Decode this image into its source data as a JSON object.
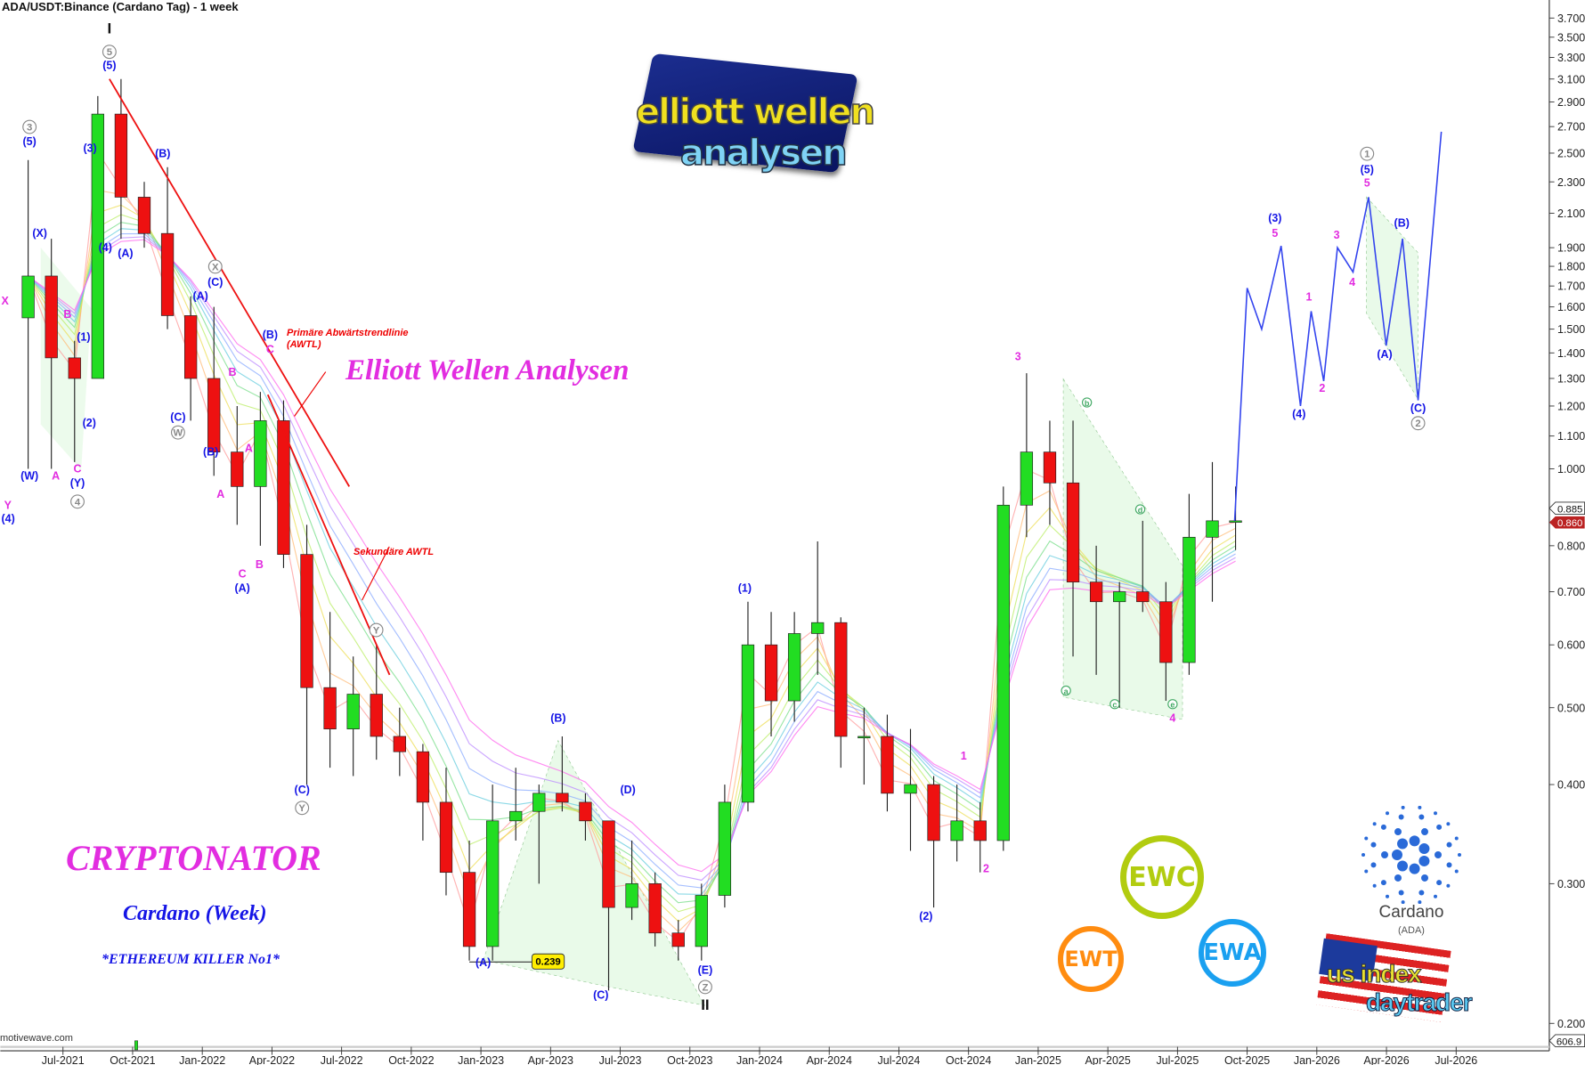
{
  "header": {
    "title": "ADA/USDT:Binance (Cardano Tag) - 1 week"
  },
  "watermark": "motivewave.com",
  "texts": {
    "main_title": "Elliott Wellen Analysen",
    "cryptonator": "CRYPTONATOR",
    "subtitle": "Cardano (Week)",
    "tagline": "*ETHEREUM KILLER No1*",
    "primary_trendline": "Primäre Abwärtstrendlinie (AWTL)",
    "secondary_trendline": "Sekundäre AWTL"
  },
  "logos": {
    "elliott_wellen": [
      "elliott wellen",
      "analysen"
    ],
    "badges": [
      "EWC",
      "EWT",
      "EWA"
    ],
    "cardano": [
      "Cardano",
      "(ADA)"
    ],
    "usindex": [
      "us index",
      "daytrader"
    ]
  },
  "chart_data": {
    "type": "candlestick",
    "title": "ADA/USDT:Binance (Cardano Tag) - 1 week",
    "y_scale": "log",
    "ylim": [
      0.19,
      3.9
    ],
    "xlim": [
      "2021-04-01",
      "2026-08-01"
    ],
    "grid": false,
    "colors": {
      "up": "#22dd22",
      "down": "#ee1111",
      "projection": "#3344ee",
      "trendline": "#ee1111",
      "wave_blue": "#1515e6",
      "wave_magenta": "#e22de0",
      "wave_gray": "#888888",
      "wave_green": "#44aa66"
    },
    "y_ticks": [
      "3.700",
      "3.500",
      "3.300",
      "3.100",
      "2.900",
      "2.700",
      "2.500",
      "2.300",
      "2.100",
      "1.900",
      "1.800",
      "1.700",
      "1.600",
      "1.500",
      "1.400",
      "1.300",
      "1.200",
      "1.100",
      "1.000",
      "0.800",
      "0.700",
      "0.600",
      "0.500",
      "0.400",
      "0.300",
      "0.200"
    ],
    "x_ticks": [
      "Jul-2021",
      "Oct-2021",
      "Jan-2022",
      "Apr-2022",
      "Jul-2022",
      "Oct-2022",
      "Jan-2023",
      "Apr-2023",
      "Jul-2023",
      "Oct-2023",
      "Jan-2024",
      "Apr-2024",
      "Jul-2024",
      "Oct-2024",
      "Jan-2025",
      "Apr-2025",
      "Jul-2025",
      "Oct-2025",
      "Jan-2026",
      "Apr-2026",
      "Jul-2026"
    ],
    "price_tags": {
      "last": "0.885",
      "current": "0.860",
      "volume": "606.9"
    },
    "low_marker": {
      "date": "2022-12",
      "price": 0.239,
      "label": "0.239"
    },
    "candles": [
      [
        "2021-05",
        1.55,
        2.45,
        1.0,
        1.75
      ],
      [
        "2021-06",
        1.75,
        1.95,
        1.0,
        1.38
      ],
      [
        "2021-07",
        1.38,
        1.45,
        1.02,
        1.3
      ],
      [
        "2021-08",
        1.3,
        2.95,
        1.3,
        2.8
      ],
      [
        "2021-09",
        2.8,
        3.1,
        1.95,
        2.2
      ],
      [
        "2021-10",
        2.2,
        2.3,
        1.9,
        1.98
      ],
      [
        "2021-11",
        1.98,
        2.4,
        1.5,
        1.56
      ],
      [
        "2021-12",
        1.56,
        1.65,
        1.15,
        1.3
      ],
      [
        "2022-01",
        1.3,
        1.6,
        0.98,
        1.05
      ],
      [
        "2022-02",
        1.05,
        1.2,
        0.85,
        0.95
      ],
      [
        "2022-03",
        0.95,
        1.25,
        0.8,
        1.15
      ],
      [
        "2022-04",
        1.15,
        1.22,
        0.75,
        0.78
      ],
      [
        "2022-05",
        0.78,
        0.85,
        0.4,
        0.53
      ],
      [
        "2022-06",
        0.53,
        0.66,
        0.42,
        0.47
      ],
      [
        "2022-07",
        0.47,
        0.58,
        0.41,
        0.52
      ],
      [
        "2022-08",
        0.52,
        0.6,
        0.43,
        0.46
      ],
      [
        "2022-09",
        0.46,
        0.5,
        0.41,
        0.44
      ],
      [
        "2022-10",
        0.44,
        0.45,
        0.34,
        0.38
      ],
      [
        "2022-11",
        0.38,
        0.42,
        0.29,
        0.31
      ],
      [
        "2022-12",
        0.31,
        0.34,
        0.24,
        0.25
      ],
      [
        "2023-01",
        0.25,
        0.4,
        0.24,
        0.36
      ],
      [
        "2023-02",
        0.36,
        0.42,
        0.34,
        0.37
      ],
      [
        "2023-03",
        0.37,
        0.4,
        0.3,
        0.39
      ],
      [
        "2023-04",
        0.39,
        0.46,
        0.37,
        0.38
      ],
      [
        "2023-05",
        0.38,
        0.39,
        0.34,
        0.36
      ],
      [
        "2023-06",
        0.36,
        0.36,
        0.22,
        0.28
      ],
      [
        "2023-07",
        0.28,
        0.34,
        0.27,
        0.3
      ],
      [
        "2023-08",
        0.3,
        0.31,
        0.25,
        0.26
      ],
      [
        "2023-09",
        0.26,
        0.27,
        0.24,
        0.25
      ],
      [
        "2023-10",
        0.25,
        0.3,
        0.24,
        0.29
      ],
      [
        "2023-11",
        0.29,
        0.4,
        0.28,
        0.38
      ],
      [
        "2023-12",
        0.38,
        0.68,
        0.37,
        0.6
      ],
      [
        "2024-01",
        0.6,
        0.66,
        0.46,
        0.51
      ],
      [
        "2024-02",
        0.51,
        0.66,
        0.48,
        0.62
      ],
      [
        "2024-03",
        0.62,
        0.81,
        0.55,
        0.64
      ],
      [
        "2024-04",
        0.64,
        0.65,
        0.42,
        0.46
      ],
      [
        "2024-05",
        0.46,
        0.5,
        0.4,
        0.46
      ],
      [
        "2024-06",
        0.46,
        0.49,
        0.37,
        0.39
      ],
      [
        "2024-07",
        0.39,
        0.47,
        0.33,
        0.4
      ],
      [
        "2024-08",
        0.4,
        0.41,
        0.28,
        0.34
      ],
      [
        "2024-09",
        0.34,
        0.4,
        0.32,
        0.36
      ],
      [
        "2024-10",
        0.36,
        0.38,
        0.31,
        0.34
      ],
      [
        "2024-11",
        0.34,
        0.95,
        0.33,
        0.9
      ],
      [
        "2024-12",
        0.9,
        1.32,
        0.82,
        1.05
      ],
      [
        "2025-01",
        1.05,
        1.15,
        0.85,
        0.96
      ],
      [
        "2025-02",
        0.96,
        1.15,
        0.58,
        0.72
      ],
      [
        "2025-03",
        0.72,
        0.8,
        0.55,
        0.68
      ],
      [
        "2025-04",
        0.68,
        0.72,
        0.5,
        0.7
      ],
      [
        "2025-05",
        0.7,
        0.86,
        0.66,
        0.68
      ],
      [
        "2025-06",
        0.68,
        0.72,
        0.51,
        0.57
      ],
      [
        "2025-07",
        0.57,
        0.93,
        0.55,
        0.82
      ],
      [
        "2025-08",
        0.82,
        1.02,
        0.68,
        0.86
      ],
      [
        "2025-09",
        0.86,
        0.95,
        0.79,
        0.86
      ]
    ],
    "projection": [
      [
        "2025-09-15",
        0.86
      ],
      [
        "2025-10-01",
        1.69
      ],
      [
        "2025-10-20",
        1.5
      ],
      [
        "2025-11-15",
        1.91
      ],
      [
        "2025-12-10",
        1.2
      ],
      [
        "2025-12-24",
        1.58
      ],
      [
        "2026-01-10",
        1.29
      ],
      [
        "2026-01-28",
        1.9
      ],
      [
        "2026-02-18",
        1.77
      ],
      [
        "2026-03-08",
        2.2
      ],
      [
        "2026-03-31",
        1.43
      ],
      [
        "2026-04-22",
        1.95
      ],
      [
        "2026-05-12",
        1.22
      ],
      [
        "2026-06-12",
        2.66
      ]
    ],
    "trendlines": [
      {
        "label": "Primäre Abwärtstrendlinie (AWTL)",
        "from": [
          "2021-09-01",
          3.1
        ],
        "to": [
          "2022-07-11",
          0.95
        ]
      },
      {
        "label": "Sekundäre AWTL",
        "from": [
          "2022-03-26",
          1.24
        ],
        "to": [
          "2022-09-03",
          0.55
        ]
      }
    ],
    "wave_labels": [
      {
        "t": "I",
        "d": "2021-09-01",
        "p": 3.54,
        "c": "black"
      },
      {
        "t": "5",
        "d": "2021-09-01",
        "p": 3.32,
        "c": "circle"
      },
      {
        "t": "(5)",
        "d": "2021-09-01",
        "p": 3.21,
        "c": "blue"
      },
      {
        "t": "3",
        "d": "2021-05-18",
        "p": 2.67,
        "c": "circle"
      },
      {
        "t": "(5)",
        "d": "2021-05-18",
        "p": 2.56,
        "c": "blue"
      },
      {
        "t": "(3)",
        "d": "2021-08-06",
        "p": 2.51,
        "c": "blue"
      },
      {
        "t": "(4)",
        "d": "2021-08-26",
        "p": 1.88,
        "c": "blue"
      },
      {
        "t": "(A)",
        "d": "2021-09-22",
        "p": 1.85,
        "c": "blue"
      },
      {
        "t": "(B)",
        "d": "2021-11-10",
        "p": 2.47,
        "c": "blue"
      },
      {
        "t": "X",
        "d": "2022-01-18",
        "p": 1.78,
        "c": "circle"
      },
      {
        "t": "(C)",
        "d": "2022-01-18",
        "p": 1.7,
        "c": "blue"
      },
      {
        "t": "(A)",
        "d": "2021-12-29",
        "p": 1.65,
        "c": "blue"
      },
      {
        "t": "(B)",
        "d": "2022-03-29",
        "p": 1.46,
        "c": "blue"
      },
      {
        "t": "C",
        "d": "2022-03-29",
        "p": 1.4,
        "c": "magenta"
      },
      {
        "t": "B",
        "d": "2022-02-10",
        "p": 1.31,
        "c": "magenta"
      },
      {
        "t": "(C)",
        "d": "2021-11-30",
        "p": 1.15,
        "c": "blue"
      },
      {
        "t": "W",
        "d": "2021-11-30",
        "p": 1.1,
        "c": "circle"
      },
      {
        "t": "(B)",
        "d": "2022-01-12",
        "p": 1.04,
        "c": "blue"
      },
      {
        "t": "A",
        "d": "2022-03-01",
        "p": 1.05,
        "c": "magenta"
      },
      {
        "t": "A",
        "d": "2022-01-25",
        "p": 0.92,
        "c": "magenta"
      },
      {
        "t": "C",
        "d": "2022-02-23",
        "p": 0.73,
        "c": "magenta"
      },
      {
        "t": "B",
        "d": "2022-03-15",
        "p": 0.75,
        "c": "magenta"
      },
      {
        "t": "(A)",
        "d": "2022-02-23",
        "p": 0.7,
        "c": "blue"
      },
      {
        "t": "Y",
        "d": "2022-08-16",
        "p": 0.62,
        "c": "circle"
      },
      {
        "t": "(C)",
        "d": "2022-05-10",
        "p": 0.39,
        "c": "blue"
      },
      {
        "t": "Y",
        "d": "2022-05-10",
        "p": 0.37,
        "c": "circle"
      },
      {
        "t": "(X)",
        "d": "2021-06-01",
        "p": 1.96,
        "c": "blue"
      },
      {
        "t": "X",
        "d": "2021-04-15",
        "p": 1.61,
        "c": "magenta"
      },
      {
        "t": "B",
        "d": "2021-07-07",
        "p": 1.55,
        "c": "magenta"
      },
      {
        "t": "(1)",
        "d": "2021-07-28",
        "p": 1.45,
        "c": "blue"
      },
      {
        "t": "(2)",
        "d": "2021-08-05",
        "p": 1.13,
        "c": "blue"
      },
      {
        "t": "(W)",
        "d": "2021-05-18",
        "p": 0.97,
        "c": "blue"
      },
      {
        "t": "A",
        "d": "2021-06-22",
        "p": 0.97,
        "c": "magenta"
      },
      {
        "t": "C",
        "d": "2021-07-20",
        "p": 0.99,
        "c": "magenta"
      },
      {
        "t": "(Y)",
        "d": "2021-07-20",
        "p": 0.95,
        "c": "blue"
      },
      {
        "t": "4",
        "d": "2021-07-20",
        "p": 0.9,
        "c": "circle"
      },
      {
        "t": "Y",
        "d": "2021-04-20",
        "p": 0.89,
        "c": "magenta"
      },
      {
        "t": "(4)",
        "d": "2021-04-20",
        "p": 0.86,
        "c": "blue"
      },
      {
        "t": "(A)",
        "d": "2023-01-04",
        "p": 0.236,
        "c": "blue"
      },
      {
        "t": "(B)",
        "d": "2023-04-11",
        "p": 0.48,
        "c": "blue"
      },
      {
        "t": "(D)",
        "d": "2023-07-11",
        "p": 0.39,
        "c": "blue"
      },
      {
        "t": "(C)",
        "d": "2023-06-06",
        "p": 0.215,
        "c": "blue"
      },
      {
        "t": "(E)",
        "d": "2023-10-21",
        "p": 0.231,
        "c": "blue"
      },
      {
        "t": "Z",
        "d": "2023-10-21",
        "p": 0.22,
        "c": "circle"
      },
      {
        "t": "II",
        "d": "2023-10-21",
        "p": 0.208,
        "c": "black"
      },
      {
        "t": "(1)",
        "d": "2023-12-12",
        "p": 0.7,
        "c": "blue"
      },
      {
        "t": "(2)",
        "d": "2024-08-06",
        "p": 0.27,
        "c": "blue"
      },
      {
        "t": "1",
        "d": "2024-09-25",
        "p": 0.43,
        "c": "magenta"
      },
      {
        "t": "2",
        "d": "2024-10-24",
        "p": 0.31,
        "c": "magenta"
      },
      {
        "t": "3",
        "d": "2024-12-05",
        "p": 1.37,
        "c": "magenta"
      },
      {
        "t": "b",
        "d": "2025-03-04",
        "p": 1.2,
        "c": "greencircle"
      },
      {
        "t": "d",
        "d": "2025-05-13",
        "p": 0.88,
        "c": "greencircle"
      },
      {
        "t": "a",
        "d": "2025-02-07",
        "p": 0.52,
        "c": "greencircle"
      },
      {
        "t": "c",
        "d": "2025-04-10",
        "p": 0.5,
        "c": "greencircle"
      },
      {
        "t": "e",
        "d": "2025-06-25",
        "p": 0.5,
        "c": "greencircle"
      },
      {
        "t": "4",
        "d": "2025-06-25",
        "p": 0.48,
        "c": "magenta"
      },
      {
        "t": "(3)",
        "d": "2025-11-07",
        "p": 2.05,
        "c": "blue"
      },
      {
        "t": "5",
        "d": "2025-11-07",
        "p": 1.96,
        "c": "magenta"
      },
      {
        "t": "(4)",
        "d": "2025-12-08",
        "p": 1.16,
        "c": "blue"
      },
      {
        "t": "1",
        "d": "2025-12-21",
        "p": 1.63,
        "c": "magenta"
      },
      {
        "t": "2",
        "d": "2026-01-08",
        "p": 1.25,
        "c": "magenta"
      },
      {
        "t": "3",
        "d": "2026-01-27",
        "p": 1.95,
        "c": "magenta"
      },
      {
        "t": "4",
        "d": "2026-02-17",
        "p": 1.7,
        "c": "magenta"
      },
      {
        "t": "1",
        "d": "2026-03-06",
        "p": 2.47,
        "c": "circle"
      },
      {
        "t": "(5)",
        "d": "2026-03-06",
        "p": 2.36,
        "c": "blue"
      },
      {
        "t": "5",
        "d": "2026-03-06",
        "p": 2.27,
        "c": "magenta"
      },
      {
        "t": "(B)",
        "d": "2026-04-21",
        "p": 2.02,
        "c": "blue"
      },
      {
        "t": "(A)",
        "d": "2026-03-29",
        "p": 1.38,
        "c": "blue"
      },
      {
        "t": "(C)",
        "d": "2026-05-12",
        "p": 1.18,
        "c": "blue"
      },
      {
        "t": "2",
        "d": "2026-05-12",
        "p": 1.13,
        "c": "circle"
      }
    ]
  }
}
